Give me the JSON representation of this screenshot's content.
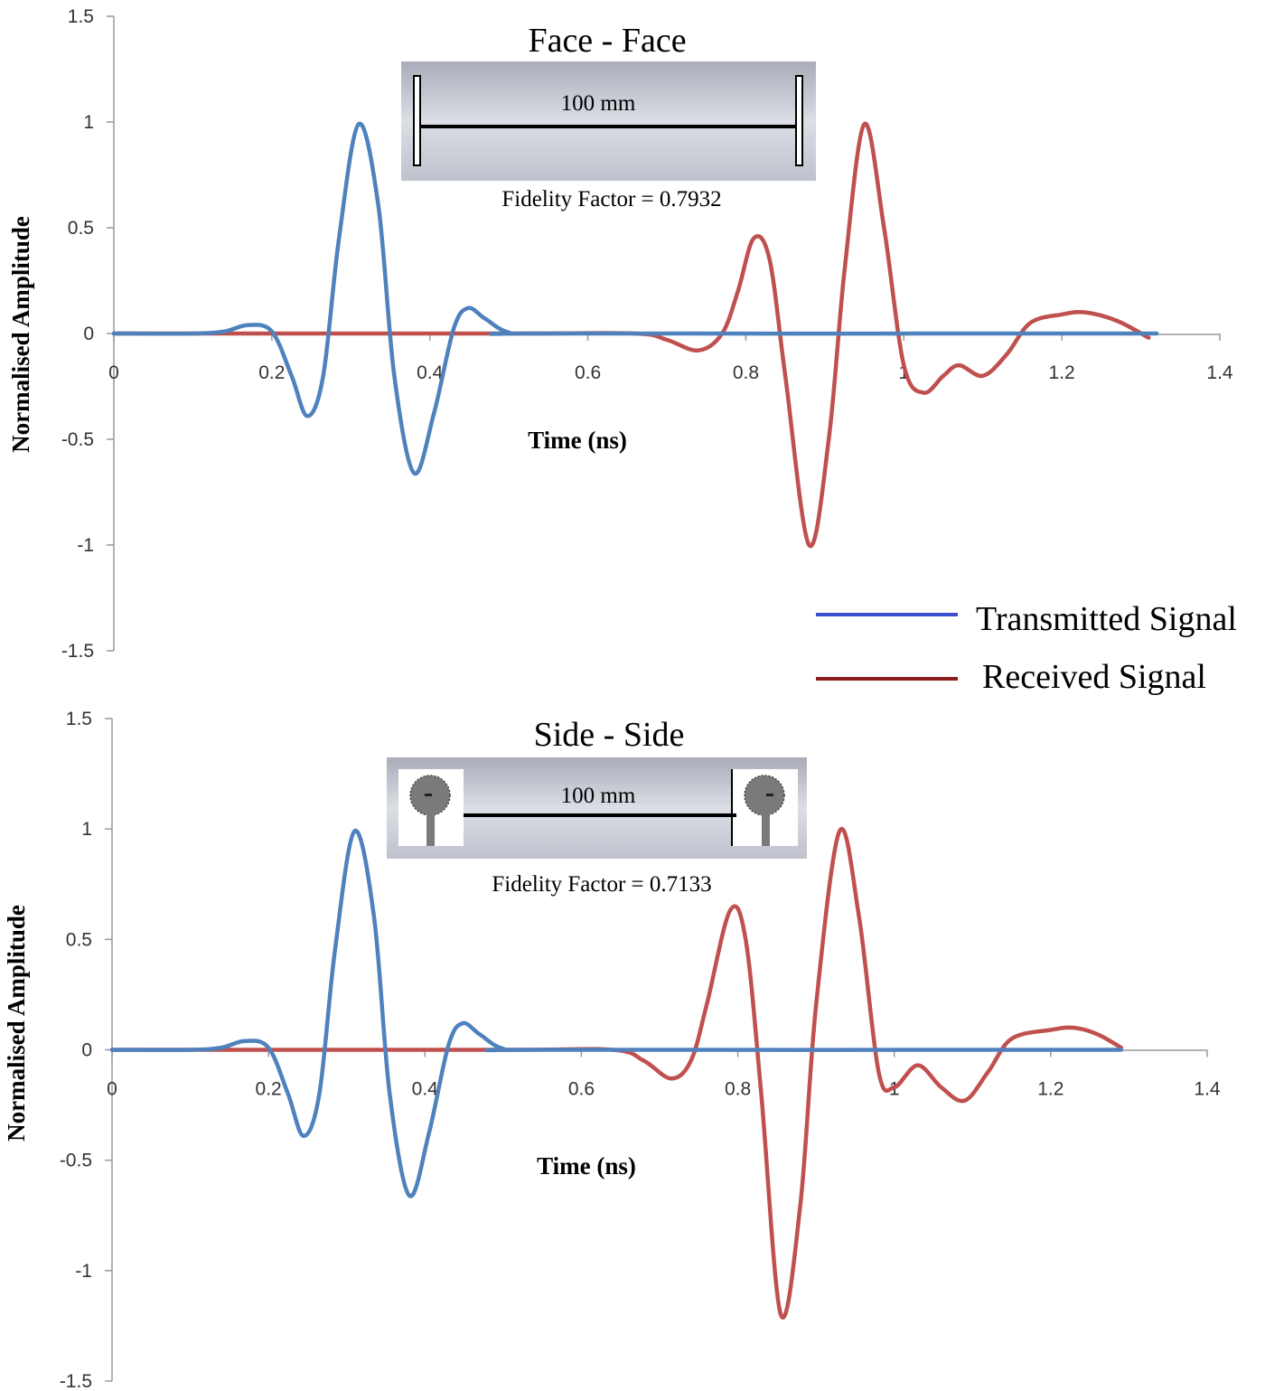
{
  "chart_data": [
    {
      "type": "line",
      "title": "Face - Face",
      "xlabel": "Time  (ns)",
      "ylabel": "Normalised Amplitude",
      "xlim": [
        0,
        1.4
      ],
      "ylim": [
        -1.5,
        1.5
      ],
      "xticks": [
        "0",
        "0.2",
        "0.4",
        "0.6",
        "0.8",
        "1",
        "1.2",
        "1.4"
      ],
      "yticks": [
        "1.5",
        "1",
        "0.5",
        "0",
        "-0.5",
        "-1",
        "-1.5"
      ],
      "grid": false,
      "annotations": {
        "distance": "100 mm",
        "fidelity": "Fidelity Factor = 0.7932"
      },
      "series": [
        {
          "name": "Transmitted Signal",
          "color": "#4f81bd",
          "points": [
            [
              0,
              0
            ],
            [
              0.1,
              0
            ],
            [
              0.14,
              0.01
            ],
            [
              0.17,
              0.04
            ],
            [
              0.2,
              0.01
            ],
            [
              0.225,
              -0.2
            ],
            [
              0.245,
              -0.39
            ],
            [
              0.265,
              -0.2
            ],
            [
              0.285,
              0.45
            ],
            [
              0.31,
              0.99
            ],
            [
              0.335,
              0.6
            ],
            [
              0.355,
              -0.2
            ],
            [
              0.38,
              -0.66
            ],
            [
              0.405,
              -0.38
            ],
            [
              0.43,
              0.02
            ],
            [
              0.448,
              0.12
            ],
            [
              0.47,
              0.07
            ],
            [
              0.5,
              0.005
            ],
            [
              0.55,
              0
            ],
            [
              1.32,
              0
            ]
          ]
        },
        {
          "name": "Received Signal",
          "color": "#c0504d",
          "points": [
            [
              0,
              0
            ],
            [
              0.5,
              0
            ],
            [
              0.66,
              0
            ],
            [
              0.7,
              -0.03
            ],
            [
              0.74,
              -0.08
            ],
            [
              0.77,
              0
            ],
            [
              0.79,
              0.2
            ],
            [
              0.81,
              0.45
            ],
            [
              0.83,
              0.35
            ],
            [
              0.85,
              -0.2
            ],
            [
              0.88,
              -1.0
            ],
            [
              0.905,
              -0.5
            ],
            [
              0.925,
              0.3
            ],
            [
              0.95,
              0.99
            ],
            [
              0.975,
              0.5
            ],
            [
              1.0,
              -0.15
            ],
            [
              1.025,
              -0.28
            ],
            [
              1.05,
              -0.2
            ],
            [
              1.07,
              -0.15
            ],
            [
              1.1,
              -0.2
            ],
            [
              1.13,
              -0.1
            ],
            [
              1.16,
              0.05
            ],
            [
              1.2,
              0.09
            ],
            [
              1.23,
              0.1
            ],
            [
              1.27,
              0.06
            ],
            [
              1.31,
              -0.02
            ]
          ]
        }
      ]
    },
    {
      "type": "line",
      "title": "Side - Side",
      "xlabel": "Time  (ns)",
      "ylabel": "Normalised Amplitude",
      "xlim": [
        0,
        1.4
      ],
      "ylim": [
        -1.5,
        1.5
      ],
      "xticks": [
        "0",
        "0.2",
        "0.4",
        "0.6",
        "0.8",
        "1",
        "1.2",
        "1.4"
      ],
      "yticks": [
        "1.5",
        "1",
        "0.5",
        "0",
        "-0.5",
        "-1",
        "-1.5"
      ],
      "grid": false,
      "annotations": {
        "distance": "100 mm",
        "fidelity": "Fidelity Factor = 0.7133"
      },
      "series": [
        {
          "name": "Transmitted Signal",
          "color": "#4f81bd",
          "points": [
            [
              0,
              0
            ],
            [
              0.1,
              0
            ],
            [
              0.14,
              0.01
            ],
            [
              0.17,
              0.04
            ],
            [
              0.2,
              0.01
            ],
            [
              0.225,
              -0.2
            ],
            [
              0.245,
              -0.39
            ],
            [
              0.265,
              -0.2
            ],
            [
              0.285,
              0.45
            ],
            [
              0.31,
              0.99
            ],
            [
              0.335,
              0.6
            ],
            [
              0.355,
              -0.2
            ],
            [
              0.38,
              -0.66
            ],
            [
              0.405,
              -0.38
            ],
            [
              0.43,
              0.02
            ],
            [
              0.448,
              0.12
            ],
            [
              0.47,
              0.07
            ],
            [
              0.5,
              0.005
            ],
            [
              0.55,
              0
            ],
            [
              1.29,
              0
            ]
          ]
        },
        {
          "name": "Received Signal",
          "color": "#c0504d",
          "points": [
            [
              0,
              0
            ],
            [
              0.5,
              0
            ],
            [
              0.64,
              0
            ],
            [
              0.68,
              -0.05
            ],
            [
              0.715,
              -0.13
            ],
            [
              0.74,
              -0.05
            ],
            [
              0.76,
              0.2
            ],
            [
              0.79,
              0.63
            ],
            [
              0.81,
              0.5
            ],
            [
              0.83,
              -0.2
            ],
            [
              0.855,
              -1.2
            ],
            [
              0.88,
              -0.7
            ],
            [
              0.9,
              0.2
            ],
            [
              0.93,
              0.99
            ],
            [
              0.955,
              0.6
            ],
            [
              0.98,
              -0.1
            ],
            [
              1.0,
              -0.17
            ],
            [
              1.03,
              -0.07
            ],
            [
              1.06,
              -0.17
            ],
            [
              1.09,
              -0.23
            ],
            [
              1.12,
              -0.1
            ],
            [
              1.15,
              0.05
            ],
            [
              1.2,
              0.09
            ],
            [
              1.23,
              0.1
            ],
            [
              1.26,
              0.07
            ],
            [
              1.29,
              0.01
            ]
          ]
        }
      ]
    }
  ],
  "legend": {
    "transmitted": "Transmitted Signal",
    "received": "Received Signal",
    "transmitted_color": "#3a4fd0",
    "received_color": "#8b1a1a"
  }
}
